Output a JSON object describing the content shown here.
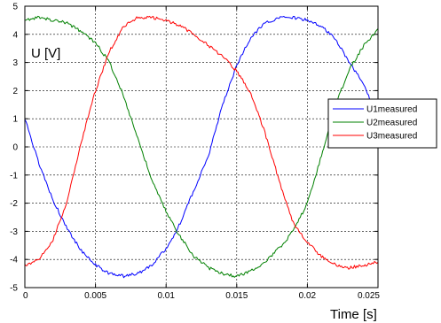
{
  "chart_data": {
    "type": "line",
    "xlabel": "Time [s]",
    "ylabel": "U [V]",
    "xlim": [
      0,
      0.025
    ],
    "ylim": [
      -5,
      5
    ],
    "xticks": [
      0,
      0.005,
      0.01,
      0.015,
      0.02,
      0.025
    ],
    "xtick_labels": [
      "0",
      "0.005",
      "0.01",
      "0.015",
      "0.02",
      "0.025"
    ],
    "yticks": [
      -5,
      -4,
      -3,
      -2,
      -1,
      0,
      1,
      2,
      3,
      4,
      5
    ],
    "ytick_labels": [
      "-5",
      "-4",
      "-3",
      "-2",
      "-1",
      "0",
      "1",
      "2",
      "3",
      "4",
      "5"
    ],
    "grid": true,
    "legend_position": "right",
    "series": [
      {
        "name": "U1measured",
        "color": "#0000ff",
        "x": [
          0,
          0.001,
          0.002,
          0.003,
          0.004,
          0.005,
          0.006,
          0.007,
          0.008,
          0.009,
          0.01,
          0.0105,
          0.011,
          0.012,
          0.013,
          0.014,
          0.015,
          0.016,
          0.017,
          0.018,
          0.019,
          0.02,
          0.021,
          0.022,
          0.023,
          0.024,
          0.0245
        ],
        "y": [
          1.0,
          -0.6,
          -1.9,
          -2.9,
          -3.7,
          -4.2,
          -4.5,
          -4.6,
          -4.5,
          -4.2,
          -3.6,
          -3.2,
          -2.7,
          -1.5,
          -0.3,
          1.5,
          2.9,
          3.9,
          4.4,
          4.6,
          4.6,
          4.5,
          4.3,
          3.8,
          3.0,
          2.2,
          1.6
        ]
      },
      {
        "name": "U2measured",
        "color": "#008000",
        "x": [
          0,
          0.001,
          0.002,
          0.003,
          0.004,
          0.005,
          0.006,
          0.007,
          0.008,
          0.009,
          0.01,
          0.011,
          0.012,
          0.013,
          0.014,
          0.015,
          0.016,
          0.017,
          0.018,
          0.019,
          0.02,
          0.021,
          0.022,
          0.023,
          0.024,
          0.025
        ],
        "y": [
          4.5,
          4.6,
          4.5,
          4.4,
          4.1,
          3.7,
          3.0,
          1.8,
          0.3,
          -1.2,
          -2.3,
          -3.2,
          -3.9,
          -4.3,
          -4.5,
          -4.6,
          -4.4,
          -4.1,
          -3.6,
          -3.0,
          -2.0,
          -0.3,
          1.5,
          2.8,
          3.6,
          4.2
        ]
      },
      {
        "name": "U3measured",
        "color": "#ff0000",
        "x": [
          0,
          0.001,
          0.002,
          0.003,
          0.004,
          0.005,
          0.006,
          0.007,
          0.008,
          0.009,
          0.01,
          0.011,
          0.012,
          0.013,
          0.014,
          0.015,
          0.016,
          0.017,
          0.018,
          0.019,
          0.02,
          0.021,
          0.022,
          0.023,
          0.024,
          0.025
        ],
        "y": [
          -4.2,
          -4.0,
          -3.3,
          -1.9,
          0.2,
          2.0,
          3.4,
          4.3,
          4.6,
          4.6,
          4.5,
          4.3,
          4.0,
          3.6,
          3.2,
          2.7,
          1.9,
          0.5,
          -1.2,
          -2.7,
          -3.4,
          -3.9,
          -4.2,
          -4.3,
          -4.2,
          -4.1
        ]
      }
    ]
  }
}
